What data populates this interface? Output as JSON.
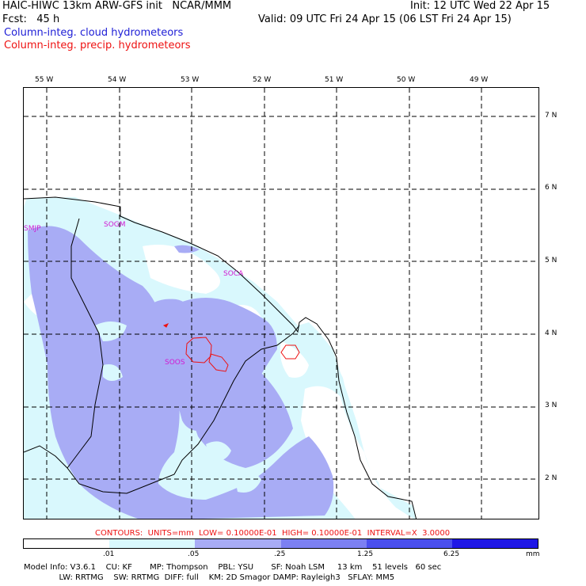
{
  "header": {
    "model_line": "HAIC-HIWC 13km ARW-GFS init   NCAR/MMM",
    "fcst_label": "Fcst:   45 h",
    "init_line": "Init: 12 UTC Wed 22 Apr 15",
    "valid_line": "Valid: 09 UTC Fri 24 Apr 15 (06 LST Fri 24 Apr 15)",
    "field1": "Column-integ. cloud hydrometeors",
    "field2": "Column-integ. precip. hydrometeors"
  },
  "map": {
    "lon_labels": [
      "55 W",
      "54 W",
      "53 W",
      "52 W",
      "51 W",
      "50 W",
      "49 W"
    ],
    "lat_labels": [
      "7 N",
      "6 N",
      "5 N",
      "4 N",
      "3 N",
      "2 N"
    ],
    "stations": [
      "SMJP",
      "SOGM",
      "SOCA",
      "SOOS"
    ],
    "colors": {
      "lightest": "#d9f8fd",
      "light": "#a8acf5",
      "medium": "#5b5ff0",
      "dark": "#1f17e6",
      "contour": "#e11"
    }
  },
  "contours_line": "CONTOURS:  UNITS=mm  LOW= 0.10000E-01  HIGH= 0.10000E-01  INTERVAL=X  3.0000",
  "colorbar": {
    "labels": [
      ".01",
      ".05",
      ".25",
      "1.25",
      "6.25",
      "mm"
    ],
    "colors": [
      "#ffffff",
      "#d9f8fd",
      "#a8acf5",
      "#7c80f2",
      "#4a4fee",
      "#1f17e6"
    ]
  },
  "footer": {
    "line1": "Model Info: V3.6.1    CU: KF       MP: Thompson    PBL: YSU       SF: Noah LSM     13 km    51 levels   60 sec",
    "line2": "              LW: RRTMG    SW: RRTMG  DIFF: full    KM: 2D Smagor DAMP: Rayleigh3   SFLAY: MM5"
  }
}
